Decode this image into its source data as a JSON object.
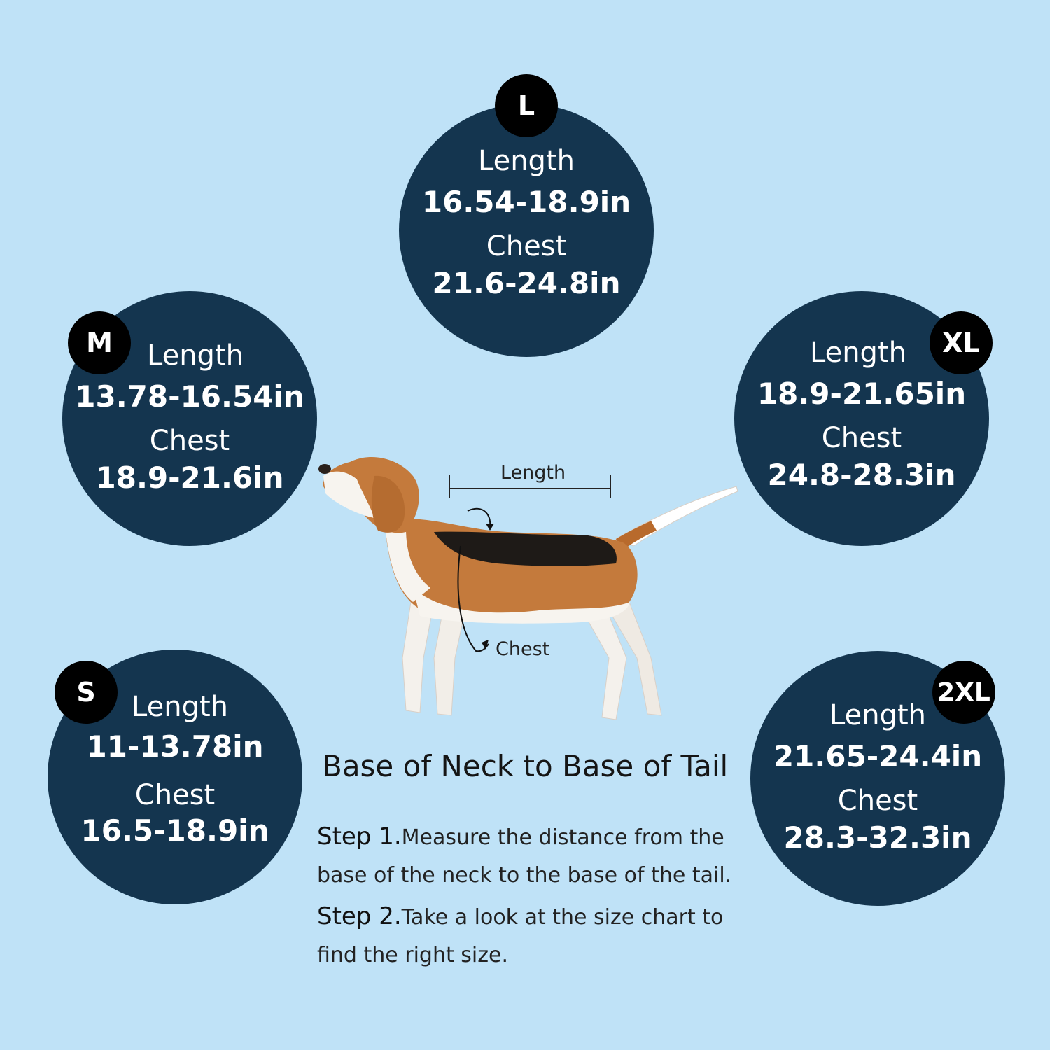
{
  "sizes": {
    "L": {
      "badge": "L",
      "length_label": "Length",
      "length": "16.54-18.9in",
      "chest_label": "Chest",
      "chest": "21.6-24.8in"
    },
    "M": {
      "badge": "M",
      "length_label": "Length",
      "length": "13.78-16.54in",
      "chest_label": "Chest",
      "chest": "18.9-21.6in"
    },
    "XL": {
      "badge": "XL",
      "length_label": "Length",
      "length": "18.9-21.65in",
      "chest_label": "Chest",
      "chest": "24.8-28.3in"
    },
    "S": {
      "badge": "S",
      "length_label": "Length",
      "length": "11-13.78in",
      "chest_label": "Chest",
      "chest": "16.5-18.9in"
    },
    "XXL": {
      "badge": "2XL",
      "length_label": "Length",
      "length": "21.65-24.4in",
      "chest_label": "Chest",
      "chest": "28.3-32.3in"
    }
  },
  "diagram": {
    "length_label": "Length",
    "chest_label": "Chest"
  },
  "heading": "Base of Neck to Base of Tail",
  "steps": [
    {
      "prefix": "Step 1.",
      "text": "Measure the distance from the base of the neck to the base of the tail."
    },
    {
      "prefix": "Step 2.",
      "text": "Take a look at the size chart to find the right size."
    }
  ],
  "colors": {
    "background": "#bfe2f7",
    "circle": "#14354f",
    "badge": "#000000"
  }
}
